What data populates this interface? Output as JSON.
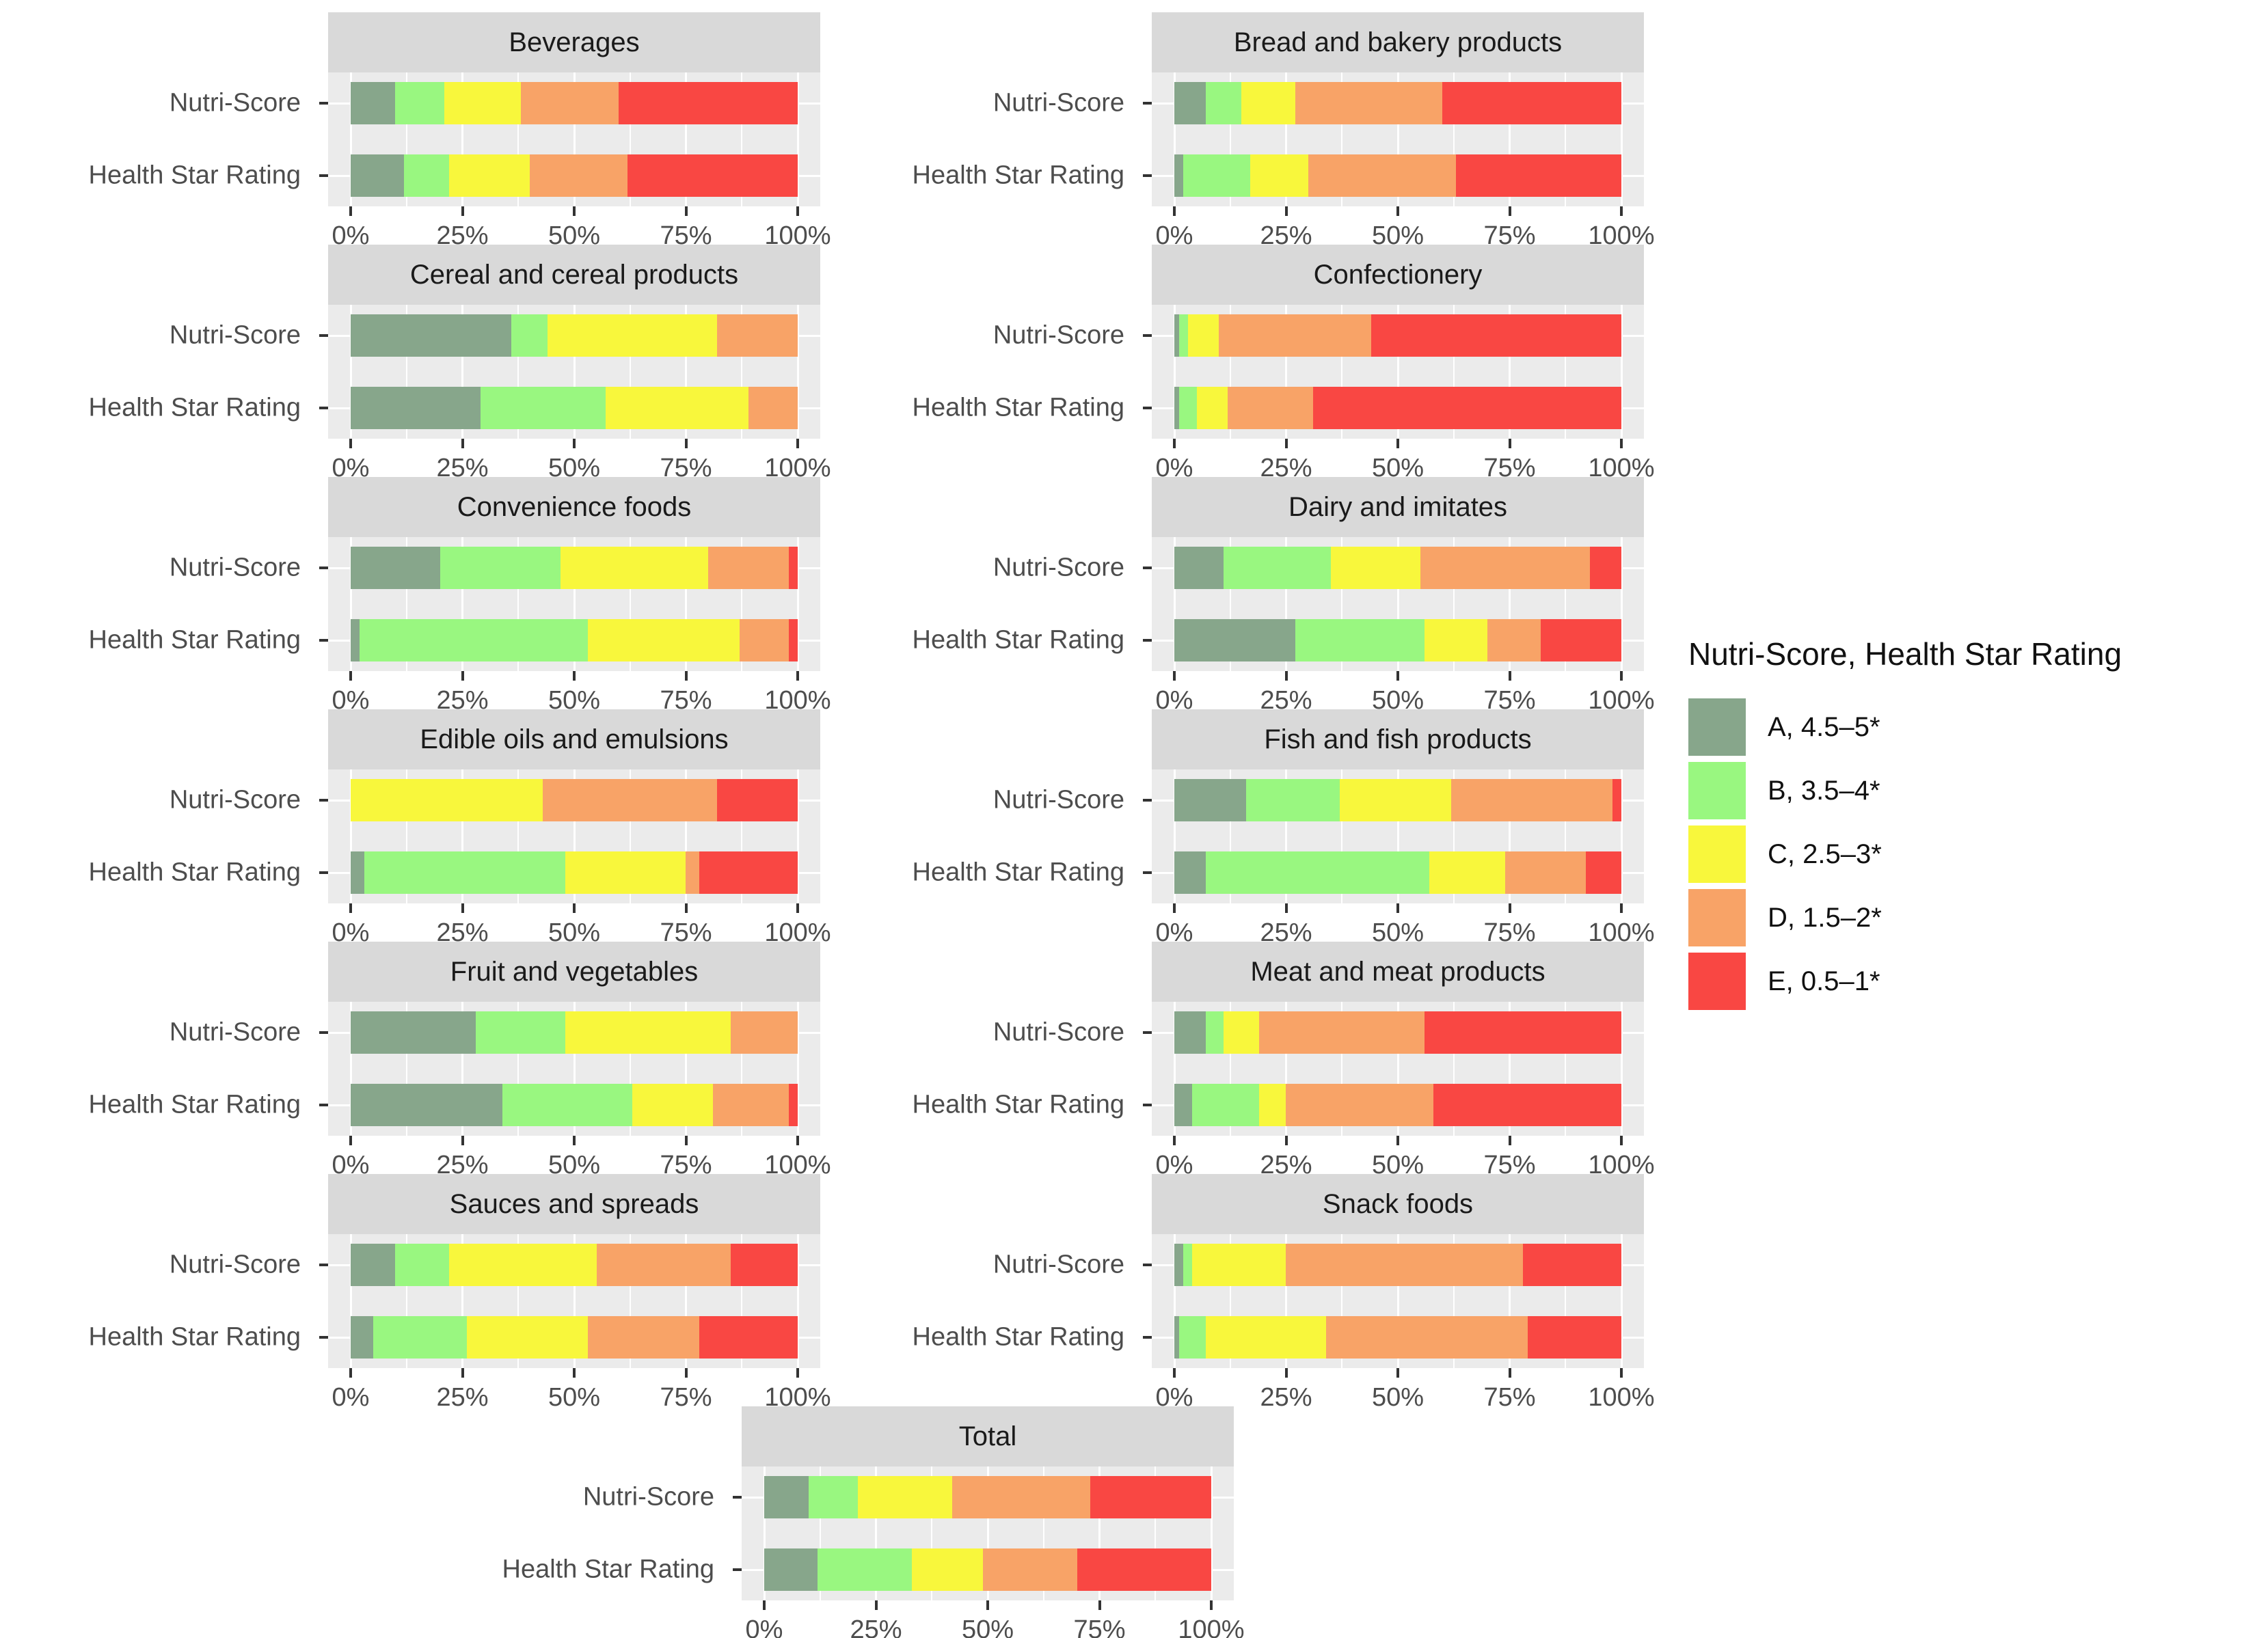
{
  "legend": {
    "title": "Nutri-Score, Health Star Rating",
    "items": [
      {
        "label": "A, 4.5–5*",
        "color": "#87A68B"
      },
      {
        "label": "B, 3.5–4*",
        "color": "#99F780"
      },
      {
        "label": "C, 2.5–3*",
        "color": "#F8F73C"
      },
      {
        "label": "D, 1.5–2*",
        "color": "#F8A367"
      },
      {
        "label": "E, 0.5–1*",
        "color": "#F94743"
      }
    ]
  },
  "chart_data": {
    "type": "bar",
    "orientation": "horizontal",
    "stacked": true,
    "unit": "percent",
    "xlim": [
      0,
      100
    ],
    "grid": true,
    "x_tick_labels": [
      "0%",
      "25%",
      "50%",
      "75%",
      "100%"
    ],
    "categories": [
      "A, 4.5–5*",
      "B, 3.5–4*",
      "C, 2.5–3*",
      "D, 1.5–2*",
      "E, 0.5–1*"
    ],
    "series_colors": [
      "#87A68B",
      "#99F780",
      "#F8F73C",
      "#F8A367",
      "#F94743"
    ],
    "facets": [
      {
        "title": "Beverages",
        "bars": [
          {
            "label": "Nutri-Score",
            "values": [
              10,
              11,
              17,
              22,
              40
            ]
          },
          {
            "label": "Health Star Rating",
            "values": [
              12,
              10,
              18,
              22,
              38
            ]
          }
        ]
      },
      {
        "title": "Bread and bakery products",
        "bars": [
          {
            "label": "Nutri-Score",
            "values": [
              7,
              8,
              12,
              33,
              40
            ]
          },
          {
            "label": "Health Star Rating",
            "values": [
              2,
              15,
              13,
              33,
              37
            ]
          }
        ]
      },
      {
        "title": "Cereal and cereal products",
        "bars": [
          {
            "label": "Nutri-Score",
            "values": [
              36,
              8,
              38,
              18,
              0
            ]
          },
          {
            "label": "Health Star Rating",
            "values": [
              29,
              28,
              32,
              11,
              0
            ]
          }
        ]
      },
      {
        "title": "Confectionery",
        "bars": [
          {
            "label": "Nutri-Score",
            "values": [
              1,
              2,
              7,
              34,
              56
            ]
          },
          {
            "label": "Health Star Rating",
            "values": [
              1,
              4,
              7,
              19,
              69
            ]
          }
        ]
      },
      {
        "title": "Convenience foods",
        "bars": [
          {
            "label": "Nutri-Score",
            "values": [
              20,
              27,
              33,
              18,
              2
            ]
          },
          {
            "label": "Health Star Rating",
            "values": [
              2,
              51,
              34,
              11,
              2
            ]
          }
        ]
      },
      {
        "title": "Dairy and imitates",
        "bars": [
          {
            "label": "Nutri-Score",
            "values": [
              11,
              24,
              20,
              38,
              7
            ]
          },
          {
            "label": "Health Star Rating",
            "values": [
              27,
              29,
              14,
              12,
              18
            ]
          }
        ]
      },
      {
        "title": "Edible oils and emulsions",
        "bars": [
          {
            "label": "Nutri-Score",
            "values": [
              0,
              0,
              43,
              39,
              18
            ]
          },
          {
            "label": "Health Star Rating",
            "values": [
              3,
              45,
              27,
              3,
              22
            ]
          }
        ]
      },
      {
        "title": "Fish and fish products",
        "bars": [
          {
            "label": "Nutri-Score",
            "values": [
              16,
              21,
              25,
              36,
              2
            ]
          },
          {
            "label": "Health Star Rating",
            "values": [
              7,
              50,
              17,
              18,
              8
            ]
          }
        ]
      },
      {
        "title": "Fruit and vegetables",
        "bars": [
          {
            "label": "Nutri-Score",
            "values": [
              28,
              20,
              37,
              15,
              0
            ]
          },
          {
            "label": "Health Star Rating",
            "values": [
              34,
              29,
              18,
              17,
              2
            ]
          }
        ]
      },
      {
        "title": "Meat and meat products",
        "bars": [
          {
            "label": "Nutri-Score",
            "values": [
              7,
              4,
              8,
              37,
              44
            ]
          },
          {
            "label": "Health Star Rating",
            "values": [
              4,
              15,
              6,
              33,
              42
            ]
          }
        ]
      },
      {
        "title": "Sauces and spreads",
        "bars": [
          {
            "label": "Nutri-Score",
            "values": [
              10,
              12,
              33,
              30,
              15
            ]
          },
          {
            "label": "Health Star Rating",
            "values": [
              5,
              21,
              27,
              25,
              22
            ]
          }
        ]
      },
      {
        "title": "Snack foods",
        "bars": [
          {
            "label": "Nutri-Score",
            "values": [
              2,
              2,
              21,
              53,
              22
            ]
          },
          {
            "label": "Health Star Rating",
            "values": [
              1,
              6,
              27,
              45,
              21
            ]
          }
        ]
      },
      {
        "title": "Total",
        "bars": [
          {
            "label": "Nutri-Score",
            "values": [
              10,
              11,
              21,
              31,
              27
            ]
          },
          {
            "label": "Health Star Rating",
            "values": [
              12,
              21,
              16,
              21,
              30
            ]
          }
        ]
      }
    ]
  }
}
